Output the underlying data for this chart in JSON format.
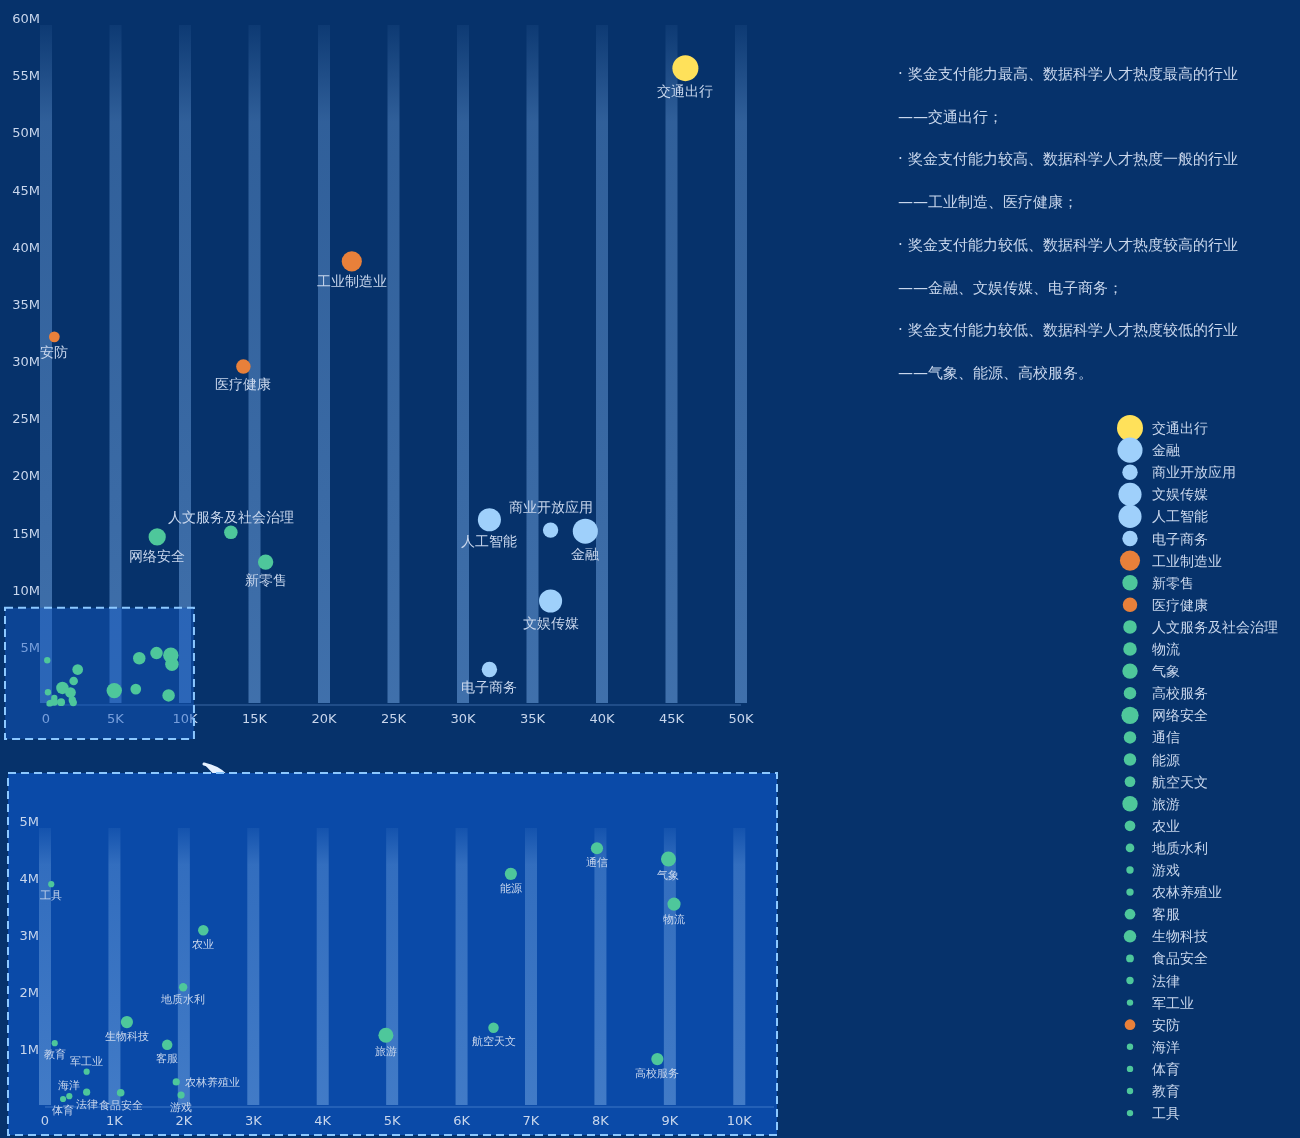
{
  "chart_data": [
    {
      "type": "bubble",
      "xlim": [
        0,
        50000
      ],
      "ylim": [
        0,
        60000000
      ],
      "xticks": [
        0,
        {
          "value": 5000,
          "label": "5K"
        },
        {
          "value": 10000,
          "label": "10K"
        },
        {
          "value": 15000,
          "label": "15K"
        },
        {
          "value": 20000,
          "label": "20K"
        },
        {
          "value": 25000,
          "label": "25K"
        },
        {
          "value": 30000,
          "label": "30K"
        },
        {
          "value": 35000,
          "label": "35K"
        },
        {
          "value": 40000,
          "label": "40K"
        },
        {
          "value": 45000,
          "label": "45K"
        },
        {
          "value": 50000,
          "label": "50K"
        }
      ],
      "yticks": [
        {
          "value": 5000000,
          "label": "5M"
        },
        {
          "value": 10000000,
          "label": "10M"
        },
        {
          "value": 15000000,
          "label": "15M"
        },
        {
          "value": 20000000,
          "label": "20M"
        },
        {
          "value": 25000000,
          "label": "25M"
        },
        {
          "value": 30000000,
          "label": "30M"
        },
        {
          "value": 35000000,
          "label": "35M"
        },
        {
          "value": 40000000,
          "label": "40M"
        },
        {
          "value": 45000000,
          "label": "45M"
        },
        {
          "value": 50000000,
          "label": "50M"
        },
        {
          "value": 55000000,
          "label": "55M"
        },
        {
          "value": 60000000,
          "label": "60M"
        }
      ],
      "grid": "x",
      "legend": "right",
      "marker": "circle",
      "annotations": [
        "· 奖金支付能力最高、数据科学人才热度最高的行业",
        "——交通出行；",
        "· 奖金支付能力较高、数据科学人才热度一般的行业",
        "——工业制造、医疗健康；",
        "· 奖金支付能力较低、数据科学人才热度较高的行业",
        "——金融、文娱传媒、电子商务；",
        "· 奖金支付能力较低、数据科学人才热度较低的行业",
        "——气象、能源、高校服务。"
      ],
      "series": [
        {
          "name": "交通出行",
          "color": "#ffe15a",
          "x": [
            46000
          ],
          "values": [
            55700000
          ],
          "sizes": [
            1
          ]
        },
        {
          "name": "金融",
          "color": "#9fd0fb",
          "x": [
            38800
          ],
          "values": [
            15200000
          ],
          "sizes": [
            0.93
          ]
        },
        {
          "name": "商业开放应用",
          "color": "#9fd0fb",
          "x": [
            36300
          ],
          "values": [
            15300000
          ],
          "sizes": [
            0.35
          ]
        },
        {
          "name": "文娱传媒",
          "color": "#9fd0fb",
          "x": [
            36300
          ],
          "values": [
            9100000
          ],
          "sizes": [
            0.79
          ]
        },
        {
          "name": "人工智能",
          "color": "#9fd0fb",
          "x": [
            31900
          ],
          "values": [
            16200000
          ],
          "sizes": [
            0.79
          ]
        },
        {
          "name": "电子商务",
          "color": "#9fd0fb",
          "x": [
            31900
          ],
          "values": [
            3100000
          ],
          "sizes": [
            0.35
          ]
        },
        {
          "name": "工业制造业",
          "color": "#e8803a",
          "x": [
            22000
          ],
          "values": [
            38800000
          ],
          "sizes": [
            0.6
          ]
        },
        {
          "name": "新零售",
          "color": "#4ec79b",
          "x": [
            15800
          ],
          "values": [
            12500000
          ],
          "sizes": [
            0.35
          ]
        },
        {
          "name": "医疗健康",
          "color": "#e8803a",
          "x": [
            14200
          ],
          "values": [
            29600000
          ],
          "sizes": [
            0.31
          ]
        },
        {
          "name": "人文服务及社会治理",
          "color": "#4ec79b",
          "x": [
            13300
          ],
          "values": [
            15100000
          ],
          "sizes": [
            0.27
          ]
        },
        {
          "name": "物流",
          "color": "#4ec79b",
          "x": [
            9060
          ],
          "values": [
            3560000
          ],
          "sizes": [
            0.27
          ]
        },
        {
          "name": "气象",
          "color": "#4ec79b",
          "x": [
            8980
          ],
          "values": [
            4350000
          ],
          "sizes": [
            0.35
          ]
        },
        {
          "name": "高校服务",
          "color": "#4ec79b",
          "x": [
            8820
          ],
          "values": [
            840000
          ],
          "sizes": [
            0.23
          ]
        },
        {
          "name": "网络安全",
          "color": "#4ec79b",
          "x": [
            8000
          ],
          "values": [
            14700000
          ],
          "sizes": [
            0.44
          ]
        },
        {
          "name": "通信",
          "color": "#4ec79b",
          "x": [
            7950
          ],
          "values": [
            4540000
          ],
          "sizes": [
            0.23
          ]
        },
        {
          "name": "能源",
          "color": "#4ec79b",
          "x": [
            6710
          ],
          "values": [
            4090000
          ],
          "sizes": [
            0.23
          ]
        },
        {
          "name": "航空天文",
          "color": "#4ec79b",
          "x": [
            6460
          ],
          "values": [
            1390000
          ],
          "sizes": [
            0.17
          ]
        },
        {
          "name": "旅游",
          "color": "#4ec79b",
          "x": [
            4910
          ],
          "values": [
            1260000
          ],
          "sizes": [
            0.35
          ]
        },
        {
          "name": "农业",
          "color": "#4ec79b",
          "x": [
            2280
          ],
          "values": [
            3100000
          ],
          "sizes": [
            0.17
          ]
        },
        {
          "name": "地质水利",
          "color": "#4ec79b",
          "x": [
            1990
          ],
          "values": [
            2100000
          ],
          "sizes": [
            0.11
          ]
        },
        {
          "name": "游戏",
          "color": "#4ec79b",
          "x": [
            1960
          ],
          "values": [
            210000
          ],
          "sizes": [
            0.08
          ]
        },
        {
          "name": "农林养殖业",
          "color": "#4ec79b",
          "x": [
            1890
          ],
          "values": [
            440000
          ],
          "sizes": [
            0.08
          ]
        },
        {
          "name": "客服",
          "color": "#4ec79b",
          "x": [
            1760
          ],
          "values": [
            1090000
          ],
          "sizes": [
            0.17
          ]
        },
        {
          "name": "生物科技",
          "color": "#4ec79b",
          "x": [
            1180
          ],
          "values": [
            1490000
          ],
          "sizes": [
            0.23
          ]
        },
        {
          "name": "食品安全",
          "color": "#4ec79b",
          "x": [
            1090
          ],
          "values": [
            250000
          ],
          "sizes": [
            0.09
          ]
        },
        {
          "name": "法律",
          "color": "#4ec79b",
          "x": [
            600
          ],
          "values": [
            260000
          ],
          "sizes": [
            0.08
          ]
        },
        {
          "name": "军工业",
          "color": "#4ec79b",
          "x": [
            600
          ],
          "values": [
            620000
          ],
          "sizes": [
            0.06
          ]
        },
        {
          "name": "安防",
          "color": "#e8803a",
          "x": [
            600
          ],
          "values": [
            32200000
          ],
          "sizes": [
            0.17
          ]
        },
        {
          "name": "海洋",
          "color": "#4ec79b",
          "x": [
            350
          ],
          "values": [
            190000
          ],
          "sizes": [
            0.06
          ]
        },
        {
          "name": "体育",
          "color": "#4ec79b",
          "x": [
            260
          ],
          "values": [
            140000
          ],
          "sizes": [
            0.06
          ]
        },
        {
          "name": "教育",
          "color": "#4ec79b",
          "x": [
            140
          ],
          "values": [
            1120000
          ],
          "sizes": [
            0.06
          ]
        },
        {
          "name": "工具",
          "color": "#4ec79b",
          "x": [
            90
          ],
          "values": [
            3910000
          ],
          "sizes": [
            0.06
          ]
        }
      ]
    },
    {
      "type": "bubble",
      "xlim": [
        0,
        10500
      ],
      "ylim": [
        0,
        5000000
      ],
      "xticks": [
        0,
        {
          "value": 1000,
          "label": "1K"
        },
        {
          "value": 2000,
          "label": "2K"
        },
        {
          "value": 3000,
          "label": "3K"
        },
        {
          "value": 4000,
          "label": "4K"
        },
        {
          "value": 5000,
          "label": "5K"
        },
        {
          "value": 6000,
          "label": "6K"
        },
        {
          "value": 7000,
          "label": "7K"
        },
        {
          "value": 8000,
          "label": "8K"
        },
        {
          "value": 9000,
          "label": "9K"
        },
        {
          "value": 10000,
          "label": "10K"
        }
      ],
      "yticks": [
        {
          "value": 1000000,
          "label": "1M"
        },
        {
          "value": 2000000,
          "label": "2M"
        },
        {
          "value": 3000000,
          "label": "3M"
        },
        {
          "value": 4000000,
          "label": "4M"
        },
        {
          "value": 5000000,
          "label": "5M"
        }
      ],
      "grid": "x",
      "marker": "circle",
      "series": [
        {
          "name": "物流",
          "color": "#4ec79b",
          "x": [
            9060
          ],
          "values": [
            3560000
          ],
          "sizes": [
            0.77
          ]
        },
        {
          "name": "气象",
          "color": "#4ec79b",
          "x": [
            8980
          ],
          "values": [
            4350000
          ],
          "sizes": [
            1
          ]
        },
        {
          "name": "高校服务",
          "color": "#4ec79b",
          "x": [
            8820
          ],
          "values": [
            840000
          ],
          "sizes": [
            0.66
          ]
        },
        {
          "name": "通信",
          "color": "#4ec79b",
          "x": [
            7950
          ],
          "values": [
            4540000
          ],
          "sizes": [
            0.66
          ]
        },
        {
          "name": "能源",
          "color": "#4ec79b",
          "x": [
            6710
          ],
          "values": [
            4090000
          ],
          "sizes": [
            0.66
          ]
        },
        {
          "name": "航空天文",
          "color": "#4ec79b",
          "x": [
            6460
          ],
          "values": [
            1390000
          ],
          "sizes": [
            0.49
          ]
        },
        {
          "name": "旅游",
          "color": "#4ec79b",
          "x": [
            4910
          ],
          "values": [
            1260000
          ],
          "sizes": [
            1
          ]
        },
        {
          "name": "农业",
          "color": "#4ec79b",
          "x": [
            2280
          ],
          "values": [
            3100000
          ],
          "sizes": [
            0.49
          ]
        },
        {
          "name": "地质水利",
          "color": "#4ec79b",
          "x": [
            1990
          ],
          "values": [
            2100000
          ],
          "sizes": [
            0.31
          ]
        },
        {
          "name": "游戏",
          "color": "#4ec79b",
          "x": [
            1960
          ],
          "values": [
            210000
          ],
          "sizes": [
            0.23
          ]
        },
        {
          "name": "农林养殖业",
          "color": "#4ec79b",
          "x": [
            1890
          ],
          "values": [
            440000
          ],
          "sizes": [
            0.23
          ]
        },
        {
          "name": "客服",
          "color": "#4ec79b",
          "x": [
            1760
          ],
          "values": [
            1090000
          ],
          "sizes": [
            0.49
          ]
        },
        {
          "name": "生物科技",
          "color": "#4ec79b",
          "x": [
            1180
          ],
          "values": [
            1490000
          ],
          "sizes": [
            0.66
          ]
        },
        {
          "name": "食品安全",
          "color": "#4ec79b",
          "x": [
            1090
          ],
          "values": [
            250000
          ],
          "sizes": [
            0.26
          ]
        },
        {
          "name": "法律",
          "color": "#4ec79b",
          "x": [
            600
          ],
          "values": [
            260000
          ],
          "sizes": [
            0.23
          ]
        },
        {
          "name": "军工业",
          "color": "#4ec79b",
          "x": [
            600
          ],
          "values": [
            620000
          ],
          "sizes": [
            0.17
          ]
        },
        {
          "name": "海洋",
          "color": "#4ec79b",
          "x": [
            350
          ],
          "values": [
            190000
          ],
          "sizes": [
            0.17
          ]
        },
        {
          "name": "体育",
          "color": "#4ec79b",
          "x": [
            260
          ],
          "values": [
            140000
          ],
          "sizes": [
            0.17
          ]
        },
        {
          "name": "教育",
          "color": "#4ec79b",
          "x": [
            140
          ],
          "values": [
            1120000
          ],
          "sizes": [
            0.17
          ]
        },
        {
          "name": "工具",
          "color": "#4ec79b",
          "x": [
            90
          ],
          "values": [
            3910000
          ],
          "sizes": [
            0.17
          ]
        }
      ]
    }
  ]
}
